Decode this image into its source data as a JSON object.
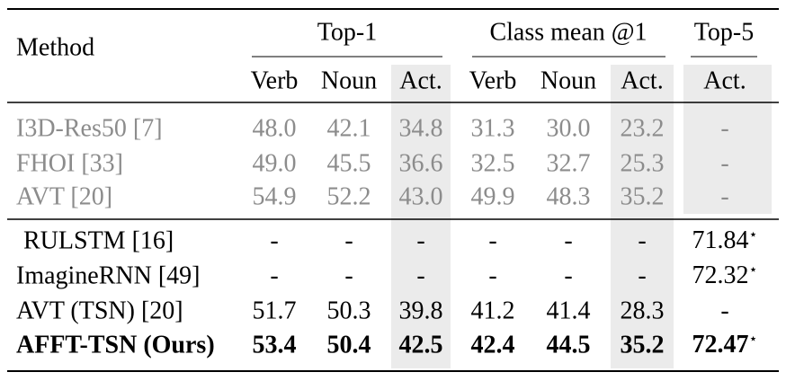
{
  "header": {
    "method": "Method",
    "groups": [
      "Top-1",
      "Class mean @1",
      "Top-5"
    ],
    "subheaders": [
      "Verb",
      "Noun",
      "Act.",
      "Verb",
      "Noun",
      "Act.",
      "Act."
    ]
  },
  "table": {
    "rows": [
      {
        "method": "I3D-Res50 [7]",
        "cells": [
          "48.0",
          "42.1",
          "34.8",
          "31.3",
          "30.0",
          "23.2",
          "-"
        ]
      },
      {
        "method": "FHOI [33]",
        "cells": [
          "49.0",
          "45.5",
          "36.6",
          "32.5",
          "32.7",
          "25.3",
          "-"
        ]
      },
      {
        "method": "AVT [20]",
        "cells": [
          "54.9",
          "52.2",
          "43.0",
          "49.9",
          "48.3",
          "35.2",
          "-"
        ]
      },
      {
        "method": "RULSTM [16]",
        "cells": [
          "-",
          "-",
          "-",
          "-",
          "-",
          "-",
          {
            "text": "71.84",
            "mark": "⋆"
          }
        ]
      },
      {
        "method": "ImagineRNN [49]",
        "cells": [
          "-",
          "-",
          "-",
          "-",
          "-",
          "-",
          {
            "text": "72.32",
            "mark": "⋆"
          }
        ]
      },
      {
        "method": "AVT (TSN) [20]",
        "cells": [
          "51.7",
          "50.3",
          "39.8",
          "41.2",
          "41.4",
          "28.3",
          "-"
        ]
      },
      {
        "method": "AFFT-TSN (Ours)",
        "cells": [
          "53.4",
          "50.4",
          "42.5",
          "42.4",
          "44.5",
          "35.2",
          {
            "text": "72.47",
            "mark": "⋆"
          }
        ]
      }
    ]
  }
}
